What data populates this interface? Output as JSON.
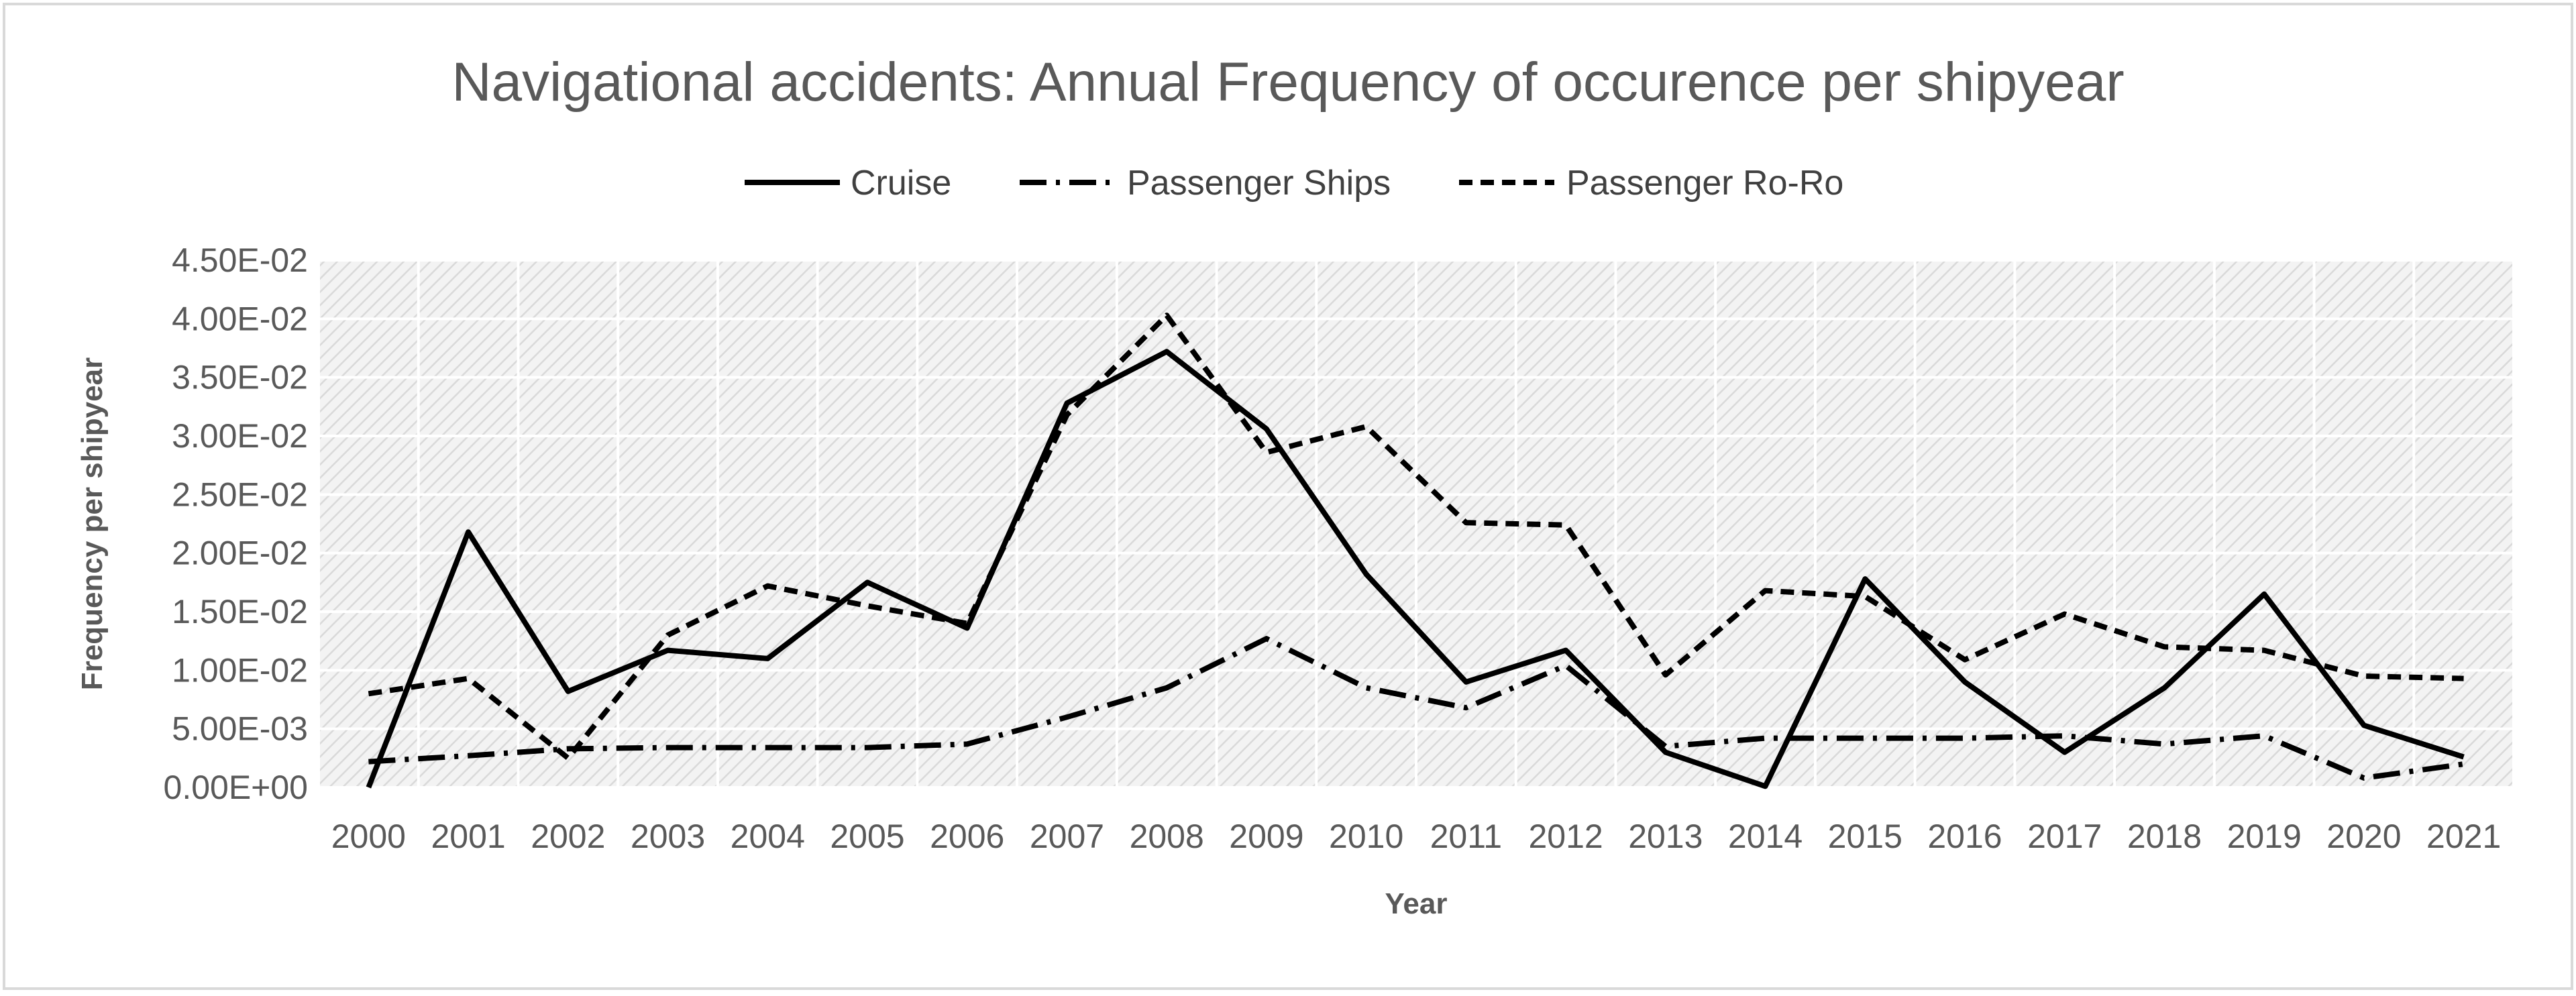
{
  "chart_data": {
    "type": "line",
    "title": "Navigational accidents: Annual Frequency of occurence per shipyear",
    "xlabel": "Year",
    "ylabel": "Frequency per shipyear",
    "categories": [
      "2000",
      "2001",
      "2002",
      "2003",
      "2004",
      "2005",
      "2006",
      "2007",
      "2008",
      "2009",
      "2010",
      "2011",
      "2012",
      "2013",
      "2014",
      "2015",
      "2016",
      "2017",
      "2018",
      "2019",
      "2020",
      "2021"
    ],
    "ylim": [
      0,
      0.045
    ],
    "yticks": [
      0,
      0.005,
      0.01,
      0.015,
      0.02,
      0.025,
      0.03,
      0.035,
      0.04,
      0.045
    ],
    "ytick_labels": [
      "0.00E+00",
      "5.00E-03",
      "1.00E-02",
      "1.50E-02",
      "2.00E-02",
      "2.50E-02",
      "3.00E-02",
      "3.50E-02",
      "4.00E-02",
      "4.50E-02"
    ],
    "grid": true,
    "legend_position": "top",
    "series": [
      {
        "name": "Cruise",
        "style": "solid",
        "color": "#000000",
        "values": [
          0.0,
          0.0218,
          0.0082,
          0.0117,
          0.011,
          0.0175,
          0.0136,
          0.0328,
          0.0372,
          0.0306,
          0.0182,
          0.009,
          0.0117,
          0.003,
          0.0001,
          0.0178,
          0.009,
          0.003,
          0.0085,
          0.0165,
          0.0053,
          0.0026
        ]
      },
      {
        "name": "Passenger Ships",
        "style": "dash-dot",
        "color": "#000000",
        "values": [
          0.0022,
          0.0027,
          0.0033,
          0.0034,
          0.0034,
          0.0034,
          0.0037,
          0.006,
          0.0085,
          0.0127,
          0.0085,
          0.0068,
          0.0104,
          0.0035,
          0.0042,
          0.0042,
          0.0042,
          0.0044,
          0.0037,
          0.0044,
          0.0008,
          0.002
        ]
      },
      {
        "name": "Passenger Ro-Ro",
        "style": "dashed",
        "color": "#000000",
        "values": [
          0.008,
          0.0093,
          0.0025,
          0.013,
          0.0172,
          0.0155,
          0.014,
          0.0318,
          0.0403,
          0.0286,
          0.0308,
          0.0226,
          0.0224,
          0.0096,
          0.0168,
          0.0163,
          0.0109,
          0.0148,
          0.012,
          0.0117,
          0.0095,
          0.0093
        ]
      }
    ]
  }
}
